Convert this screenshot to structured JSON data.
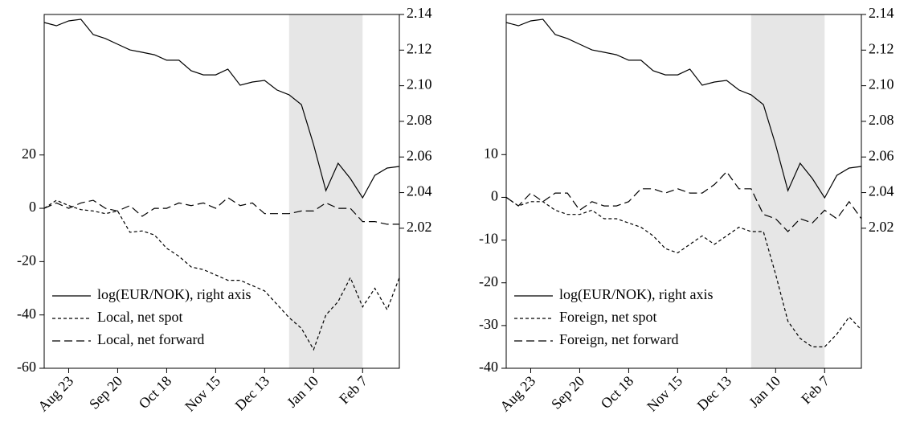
{
  "chart_data": [
    {
      "type": "line",
      "categories": [
        null,
        null,
        "Aug 23",
        null,
        null,
        null,
        "Sep 20",
        null,
        null,
        null,
        "Oct 18",
        null,
        null,
        null,
        "Nov 15",
        null,
        null,
        null,
        "Dec 13",
        null,
        null,
        null,
        "Jan 10",
        null,
        null,
        null,
        "Feb 7",
        null,
        null,
        null
      ],
      "shaded_span": [
        20,
        26
      ],
      "ylim": [
        -60,
        72.7
      ],
      "yticks": [
        -60,
        -40,
        -20,
        0,
        20
      ],
      "y2lim": [
        1.9414,
        2.14
      ],
      "y2ticks": [
        2.02,
        2.04,
        2.06,
        2.08,
        {
          "value": 2.1,
          "label": "2.10"
        },
        2.12,
        2.14
      ],
      "legend": "lower left",
      "series": [
        {
          "name": "log(EUR/NOK), right axis",
          "color": "#000000",
          "dash": "solid",
          "axis": "y2",
          "values": [
            2.1355,
            2.1337,
            2.1364,
            2.1373,
            2.1287,
            2.1265,
            2.1233,
            2.1201,
            2.1188,
            2.1174,
            2.1143,
            2.1143,
            2.1084,
            2.1061,
            2.1061,
            2.1093,
            2.1003,
            2.1021,
            2.103,
            2.0976,
            2.0949,
            2.0894,
            2.0669,
            2.0411,
            2.0565,
            2.0479,
            2.0371,
            2.0497,
            2.0538,
            2.0547
          ]
        },
        {
          "name": "Local, net spot",
          "color": "#000000",
          "dash": "short",
          "values": [
            0,
            3,
            1,
            -0.5,
            -1,
            -2,
            -1,
            -9,
            -8.5,
            -10,
            -15,
            -18,
            -22,
            -23,
            -25,
            -27,
            -27,
            -29,
            -31,
            -36,
            -41,
            -45,
            -53,
            -40,
            -35,
            -26,
            -37,
            -30,
            -38,
            -26
          ]
        },
        {
          "name": "Local, net forward",
          "color": "#000000",
          "dash": "long",
          "values": [
            0,
            2,
            0,
            2,
            3,
            0,
            -1,
            1,
            -3,
            0,
            0,
            2,
            1,
            2,
            0,
            4,
            1,
            2,
            -2,
            -2,
            -2,
            -1,
            -1,
            2,
            0,
            0,
            -5,
            -5,
            -6,
            -6
          ]
        }
      ]
    },
    {
      "type": "line",
      "categories": [
        null,
        null,
        "Aug 23",
        null,
        null,
        null,
        "Sep 20",
        null,
        null,
        null,
        "Oct 18",
        null,
        null,
        null,
        "Nov 15",
        null,
        null,
        null,
        "Dec 13",
        null,
        null,
        null,
        "Jan 10",
        null,
        null,
        null,
        "Feb 7",
        null,
        null,
        null
      ],
      "shaded_span": [
        20,
        26
      ],
      "ylim": [
        -40,
        42.8
      ],
      "yticks": [
        -40,
        -30,
        -20,
        -10,
        0,
        10
      ],
      "y2lim": [
        1.9414,
        2.14
      ],
      "y2ticks": [
        2.02,
        2.04,
        2.06,
        2.08,
        {
          "value": 2.1,
          "label": "2.10"
        },
        2.12,
        2.14
      ],
      "legend": "lower left",
      "series": [
        {
          "name": "log(EUR/NOK), right axis",
          "color": "#000000",
          "dash": "solid",
          "axis": "y2",
          "values": [
            2.1355,
            2.1337,
            2.1364,
            2.1373,
            2.1287,
            2.1265,
            2.1233,
            2.1201,
            2.1188,
            2.1174,
            2.1143,
            2.1143,
            2.1084,
            2.1061,
            2.1061,
            2.1093,
            2.1003,
            2.1021,
            2.103,
            2.0976,
            2.0949,
            2.0894,
            2.0669,
            2.0411,
            2.0565,
            2.0479,
            2.0371,
            2.0497,
            2.0538,
            2.0547
          ]
        },
        {
          "name": "Foreign, net spot",
          "color": "#000000",
          "dash": "short",
          "values": [
            0,
            -2,
            -1,
            -1,
            -3,
            -4,
            -4,
            -3,
            -5,
            -5,
            -6,
            -7,
            -9,
            -12,
            -13,
            -11,
            -9,
            -11,
            -9,
            -7,
            -8,
            -8,
            -18,
            -29,
            -33,
            -35,
            -35,
            -32,
            -28,
            -31
          ]
        },
        {
          "name": "Foreign, net forward",
          "color": "#000000",
          "dash": "long",
          "values": [
            0,
            -2,
            1,
            -1,
            1,
            1,
            -3,
            -1,
            -2,
            -2,
            -1,
            2,
            2,
            1,
            2,
            1,
            1,
            3,
            6,
            2,
            2,
            -4,
            -5,
            -8,
            -5,
            -6,
            -3,
            -5,
            -1,
            -5
          ]
        }
      ]
    }
  ]
}
